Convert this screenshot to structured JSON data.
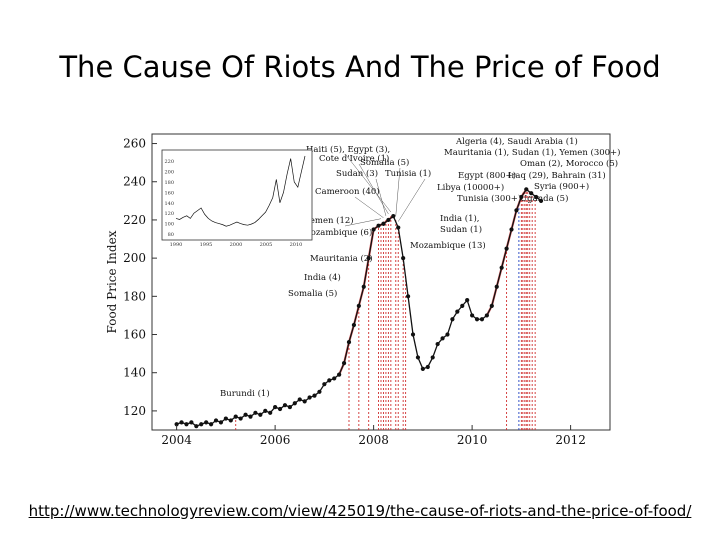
{
  "slide": {
    "title": "The Cause Of Riots And The Price of Food",
    "source_url": "http://www.technologyreview.com/view/425019/the-cause-of-riots-and-the-price-of-food/"
  },
  "chart_data": {
    "type": "line",
    "ylabel": "Food Price Index",
    "xlim": [
      2003.5,
      2012.8
    ],
    "ylim": [
      110,
      265
    ],
    "xticks": [
      2004,
      2006,
      2008,
      2010,
      2012
    ],
    "yticks": [
      120,
      140,
      160,
      180,
      200,
      220,
      240,
      260
    ],
    "grid": false,
    "colors": {
      "line": "#111111",
      "event": "#d03030",
      "event_blue": "#2040c0",
      "trend": "#d03030"
    },
    "series": [
      {
        "x": [
          2004.0,
          2004.1,
          2004.2,
          2004.3,
          2004.4,
          2004.5,
          2004.6,
          2004.7,
          2004.8,
          2004.9,
          2005.0,
          2005.1,
          2005.2,
          2005.3,
          2005.4,
          2005.5,
          2005.6,
          2005.7,
          2005.8,
          2005.9,
          2006.0,
          2006.1,
          2006.2,
          2006.3,
          2006.4,
          2006.5,
          2006.6,
          2006.7,
          2006.8,
          2006.9,
          2007.0,
          2007.1,
          2007.2,
          2007.3,
          2007.4,
          2007.5,
          2007.6,
          2007.7,
          2007.8,
          2007.9,
          2008.0,
          2008.1,
          2008.2,
          2008.3,
          2008.4,
          2008.5,
          2008.6,
          2008.7,
          2008.8,
          2008.9,
          2009.0,
          2009.1,
          2009.2,
          2009.3,
          2009.4,
          2009.5,
          2009.6,
          2009.7,
          2009.8,
          2009.9,
          2010.0,
          2010.1,
          2010.2,
          2010.3,
          2010.4,
          2010.5,
          2010.6,
          2010.7,
          2010.8,
          2010.9,
          2011.0,
          2011.1,
          2011.2,
          2011.3,
          2011.4
        ],
        "y": [
          113,
          114,
          113,
          114,
          112,
          113,
          114,
          113,
          115,
          114,
          116,
          115,
          117,
          116,
          118,
          117,
          119,
          118,
          120,
          119,
          122,
          121,
          123,
          122,
          124,
          126,
          125,
          127,
          128,
          130,
          134,
          136,
          137,
          139,
          145,
          156,
          165,
          175,
          185,
          200,
          215,
          217,
          218,
          220,
          222,
          216,
          200,
          180,
          160,
          148,
          142,
          143,
          148,
          155,
          158,
          160,
          168,
          172,
          175,
          178,
          170,
          168,
          168,
          170,
          175,
          185,
          195,
          205,
          215,
          225,
          232,
          236,
          234,
          232,
          230
        ]
      }
    ],
    "events": [
      {
        "x": 2005.2,
        "label": "Burundi (1)"
      },
      {
        "x": 2007.5,
        "label": "Somalia (5)"
      },
      {
        "x": 2007.7,
        "label": "India (4)"
      },
      {
        "x": 2007.9,
        "label": "Mauritania (2)"
      },
      {
        "x": 2008.1,
        "label": "Mozambique (6)"
      },
      {
        "x": 2008.15,
        "label": "Yemen (12)"
      },
      {
        "x": 2008.2,
        "label": "Cameroon (40)"
      },
      {
        "x": 2008.25,
        "label": "Sudan (3)"
      },
      {
        "x": 2008.3,
        "label": "Cote d'Ivoire (1)"
      },
      {
        "x": 2008.35,
        "label": "Haiti (5), Egypt (3),"
      },
      {
        "x": 2008.45,
        "label": "Somalia (5)"
      },
      {
        "x": 2008.5,
        "label": "Tunisia (1)"
      },
      {
        "x": 2008.6,
        "label": "India (1),"
      },
      {
        "x": 2008.65,
        "label": "Sudan (1)"
      },
      {
        "x": 2010.7,
        "label": "Mozambique (13)"
      },
      {
        "x": 2010.95,
        "label": "Tunisia (300+)",
        "color": "blue"
      },
      {
        "x": 2011.0,
        "label": "Algeria (4), Saudi Arabia (1)"
      },
      {
        "x": 2011.03,
        "label": "Mauritania (1), Sudan (1), Yemen (300+)"
      },
      {
        "x": 2011.07,
        "label": "Oman (2), Morocco (5)"
      },
      {
        "x": 2011.1,
        "label": "Egypt (800+)"
      },
      {
        "x": 2011.13,
        "label": "Iraq (29), Bahrain (31)"
      },
      {
        "x": 2011.17,
        "label": "Libya (10000+)"
      },
      {
        "x": 2011.22,
        "label": "Syria (900+)"
      },
      {
        "x": 2011.28,
        "label": "Uganda (5)"
      }
    ],
    "inset": {
      "xticks": [
        1990,
        1995,
        2000,
        2005,
        2010
      ],
      "yticks": [
        80,
        100,
        120,
        140,
        160,
        180,
        200,
        220
      ]
    }
  }
}
